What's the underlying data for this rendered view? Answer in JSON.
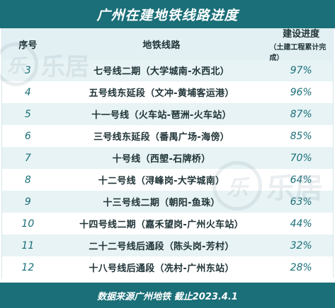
{
  "title": "广州在建地铁线路进度",
  "headers": {
    "no": "序号",
    "line": "地铁线路",
    "progress": "建设进度",
    "progress_note": "（土建工程累计完成）"
  },
  "rows": [
    {
      "no": "3",
      "line": "七号线二期（大学城南-水西北）",
      "progress": "97%"
    },
    {
      "no": "4",
      "line": "五号线东延段（文冲-黄埔客运港）",
      "progress": "96%"
    },
    {
      "no": "5",
      "line": "十一号线（火车站-琶洲-火车站）",
      "progress": "87%"
    },
    {
      "no": "6",
      "line": "三号线东延段（番禺广场-海傍）",
      "progress": "85%"
    },
    {
      "no": "7",
      "line": "十号线（西塱-石牌桥）",
      "progress": "70%"
    },
    {
      "no": "8",
      "line": "十二号线（浔峰岗-大学城南）",
      "progress": "64%"
    },
    {
      "no": "9",
      "line": "十三号线二期（朝阳-鱼珠）",
      "progress": "63%"
    },
    {
      "no": "10",
      "line": "十四号线二期（嘉禾望岗-广州火车站）",
      "progress": "44%"
    },
    {
      "no": "11",
      "line": "二十二号线后通段（陈头岗-芳村）",
      "progress": "32%"
    },
    {
      "no": "12",
      "line": "十八号线后通段（冼村-广州东站）",
      "progress": "28%"
    }
  ],
  "footer": "数据来源广州地铁 截止2023.4.1",
  "watermark": {
    "logo": "乐",
    "text": "乐居"
  },
  "colors": {
    "accent": "#1a6f78",
    "header_bg": "#e2f0f3",
    "stripe": "#e7f3f5"
  }
}
